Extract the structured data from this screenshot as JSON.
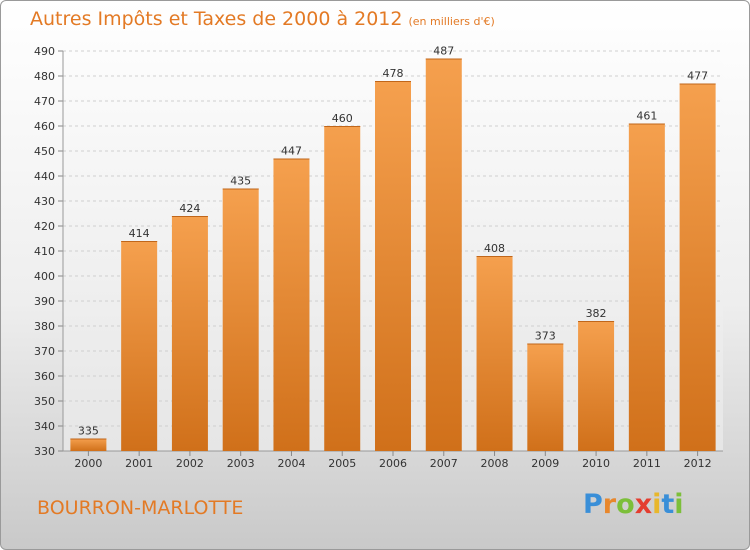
{
  "chart_data": {
    "type": "bar",
    "title": "Autres Impôts et Taxes de 2000 à 2012",
    "subtitle": "(en milliers d'€)",
    "categories": [
      "2000",
      "2001",
      "2002",
      "2003",
      "2004",
      "2005",
      "2006",
      "2007",
      "2008",
      "2009",
      "2010",
      "2011",
      "2012"
    ],
    "values": [
      335,
      414,
      424,
      435,
      447,
      460,
      478,
      487,
      408,
      373,
      382,
      461,
      477
    ],
    "ylim": [
      330,
      490
    ],
    "yticks": [
      330,
      340,
      350,
      360,
      370,
      380,
      390,
      400,
      410,
      420,
      430,
      440,
      450,
      460,
      470,
      480,
      490
    ],
    "grid": true,
    "bar_color": "#f5a04e",
    "bar_color_dark": "#d0701a"
  },
  "footer": {
    "commune": "BOURRON-MARLOTTE",
    "logo_letters": [
      "P",
      "r",
      "o",
      "x",
      "i",
      "t",
      "i"
    ],
    "logo_colors": [
      "#3a8fd8",
      "#e8872c",
      "#7cbf3a",
      "#e43d2f",
      "#e8b72c",
      "#3a8fd8",
      "#7cbf3a"
    ]
  }
}
